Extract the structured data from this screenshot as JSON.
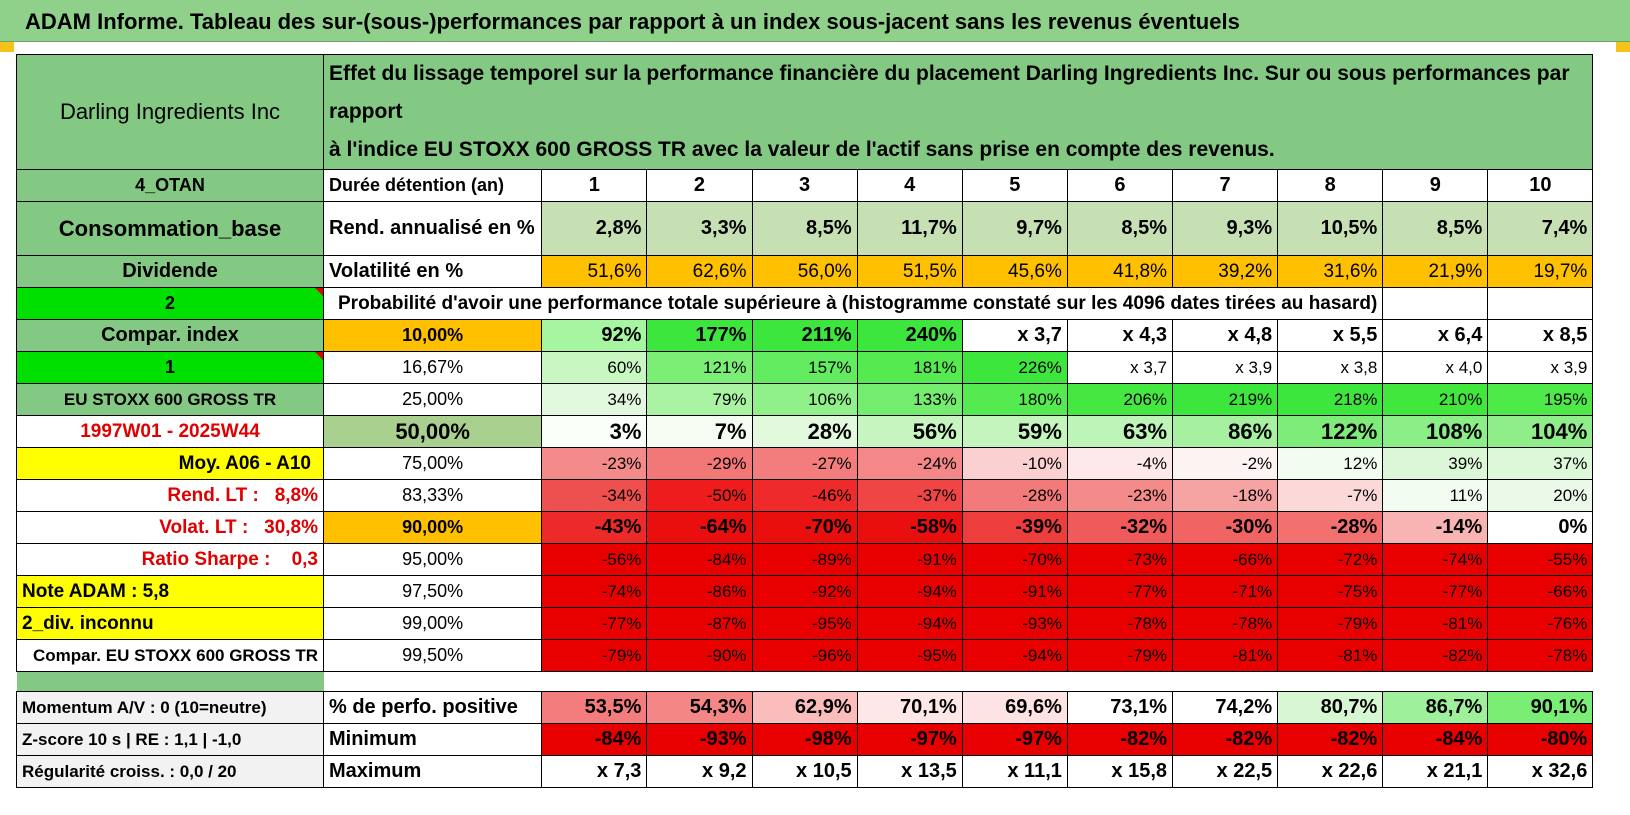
{
  "title": "ADAM Informe. Tableau des sur-(sous-)performances par rapport à un index sous-jacent sans les revenus éventuels",
  "header": {
    "asset": "Darling Ingredients Inc",
    "description_line1": "Effet du lissage temporel sur la performance financière du placement Darling Ingredients Inc. Sur ou sous performances par rapport",
    "description_line2": "à l'indice EU STOXX 600 GROSS TR avec la valeur de l'actif sans prise en compte des revenus."
  },
  "left_labels": {
    "otan": "4_OTAN",
    "consommation": "Consommation_base",
    "dividende": "Dividende",
    "num2": "2",
    "compar_index": "Compar. index",
    "num1": "1",
    "index_name": "EU STOXX 600 GROSS TR",
    "period": "1997W01 - 2025W44",
    "moy": "Moy. A06 - A10",
    "rend_lt_label": "Rend. LT :",
    "rend_lt_value": "8,8%",
    "volat_lt_label": "Volat. LT :",
    "volat_lt_value": "30,8%",
    "sharpe_label": "Ratio Sharpe :",
    "sharpe_value": "0,3",
    "note": "Note ADAM : 5,8",
    "div": "2_div. inconnu",
    "compar_full": "Compar. EU STOXX 600 GROSS TR",
    "momentum": "Momentum A/V : 0 (10=neutre)",
    "zscore": "Z-score 10 s | RE : 1,1 | -1,0",
    "regularite": "Régularité croiss. : 0,0 / 20"
  },
  "row_labels": {
    "duree": "Durée détention (an)",
    "rend": "Rend. annualisé en %",
    "volat": "Volatilité en %",
    "proba": "Probabilité d'avoir une performance totale supérieure à (histogramme constaté sur les 4096 dates tirées au hasard)",
    "positive": "% de perfo. positive",
    "minimum": "Minimum",
    "maximum": "Maximum"
  },
  "years": [
    "1",
    "2",
    "3",
    "4",
    "5",
    "6",
    "7",
    "8",
    "9",
    "10"
  ],
  "rend_values": [
    "2,8%",
    "3,3%",
    "8,5%",
    "11,7%",
    "9,7%",
    "8,5%",
    "9,3%",
    "10,5%",
    "8,5%",
    "7,4%"
  ],
  "volat_values": [
    "51,6%",
    "62,6%",
    "56,0%",
    "51,5%",
    "45,6%",
    "41,8%",
    "39,2%",
    "31,6%",
    "21,9%",
    "19,7%"
  ],
  "percentile_rows": [
    {
      "pct": "10,00%",
      "values": [
        "92%",
        "177%",
        "211%",
        "240%",
        "x 3,7",
        "x 4,3",
        "x 4,8",
        "x 5,5",
        "x 6,4",
        "x 8,5"
      ],
      "colors": [
        "#a6f5a0",
        "#3ce63c",
        "#3ce63c",
        "#3ce63c",
        "#ffffff",
        "#ffffff",
        "#ffffff",
        "#ffffff",
        "#ffffff",
        "#ffffff"
      ]
    },
    {
      "pct": "16,67%",
      "values": [
        "60%",
        "121%",
        "157%",
        "181%",
        "226%",
        "x 3,7",
        "x 3,9",
        "x 3,8",
        "x 4,0",
        "x 3,9"
      ],
      "colors": [
        "#c8f7c2",
        "#7bee76",
        "#63ec5f",
        "#55ea50",
        "#3ce63c",
        "#ffffff",
        "#ffffff",
        "#ffffff",
        "#ffffff",
        "#ffffff"
      ]
    },
    {
      "pct": "25,00%",
      "values": [
        "34%",
        "79%",
        "106%",
        "133%",
        "180%",
        "206%",
        "219%",
        "218%",
        "210%",
        "195%"
      ],
      "colors": [
        "#e3f9df",
        "#a9f3a3",
        "#90f08a",
        "#74ed6e",
        "#55ea50",
        "#45e840",
        "#3ce63c",
        "#3ce63c",
        "#42e73e",
        "#4de948"
      ]
    },
    {
      "pct": "50,00%",
      "values": [
        "3%",
        "7%",
        "28%",
        "56%",
        "59%",
        "63%",
        "86%",
        "122%",
        "108%",
        "104%"
      ],
      "colors": [
        "#fbfffa",
        "#f5fdf3",
        "#e2f9de",
        "#c6f5c0",
        "#c3f5bd",
        "#bff4b9",
        "#a6f1a0",
        "#7eec78",
        "#8cee86",
        "#90ee8a"
      ]
    },
    {
      "pct": "75,00%",
      "values": [
        "-23%",
        "-29%",
        "-27%",
        "-24%",
        "-10%",
        "-4%",
        "-2%",
        "12%",
        "39%",
        "37%"
      ],
      "colors": [
        "#f48b8b",
        "#f27777",
        "#f37d7d",
        "#f48787",
        "#fad0d0",
        "#fde9e9",
        "#fef3f3",
        "#f3fcf1",
        "#dbf7d7",
        "#ddf8d9"
      ]
    },
    {
      "pct": "83,33%",
      "values": [
        "-34%",
        "-50%",
        "-46%",
        "-37%",
        "-28%",
        "-23%",
        "-18%",
        "-7%",
        "11%",
        "20%"
      ],
      "colors": [
        "#ee4f4f",
        "#ee1c1c",
        "#ee2a2a",
        "#ef4545",
        "#f27a7a",
        "#f48b8b",
        "#f6a3a3",
        "#fbd9d9",
        "#f3fcf1",
        "#ebfae8"
      ]
    },
    {
      "pct": "90,00%",
      "values": [
        "-43%",
        "-64%",
        "-70%",
        "-58%",
        "-39%",
        "-32%",
        "-30%",
        "-28%",
        "-14%",
        "0%"
      ],
      "colors": [
        "#ec2a2a",
        "#ea0f0f",
        "#ea0f0f",
        "#ea0f0f",
        "#ee3d3d",
        "#f05a5a",
        "#f16464",
        "#f27070",
        "#f8b3b3",
        "#ffffff"
      ]
    },
    {
      "pct": "95,00%",
      "values": [
        "-56%",
        "-84%",
        "-89%",
        "-91%",
        "-70%",
        "-73%",
        "-66%",
        "-72%",
        "-74%",
        "-55%"
      ],
      "colors": [
        "#e80000",
        "#e80000",
        "#e80000",
        "#e80000",
        "#e80000",
        "#e80000",
        "#e80000",
        "#e80000",
        "#e80000",
        "#e80000"
      ]
    },
    {
      "pct": "97,50%",
      "values": [
        "-74%",
        "-86%",
        "-92%",
        "-94%",
        "-91%",
        "-77%",
        "-71%",
        "-75%",
        "-77%",
        "-66%"
      ],
      "colors": [
        "#e80000",
        "#e80000",
        "#e80000",
        "#e80000",
        "#e80000",
        "#e80000",
        "#e80000",
        "#e80000",
        "#e80000",
        "#e80000"
      ]
    },
    {
      "pct": "99,00%",
      "values": [
        "-77%",
        "-87%",
        "-95%",
        "-94%",
        "-93%",
        "-78%",
        "-78%",
        "-79%",
        "-81%",
        "-76%"
      ],
      "colors": [
        "#e80000",
        "#e80000",
        "#e80000",
        "#e80000",
        "#e80000",
        "#e80000",
        "#e80000",
        "#e80000",
        "#e80000",
        "#e80000"
      ]
    },
    {
      "pct": "99,50%",
      "values": [
        "-79%",
        "-90%",
        "-96%",
        "-95%",
        "-94%",
        "-79%",
        "-81%",
        "-81%",
        "-82%",
        "-78%"
      ],
      "colors": [
        "#e80000",
        "#e80000",
        "#e80000",
        "#e80000",
        "#e80000",
        "#e80000",
        "#e80000",
        "#e80000",
        "#e80000",
        "#e80000"
      ]
    }
  ],
  "positive_values": [
    "53,5%",
    "54,3%",
    "62,9%",
    "70,1%",
    "69,6%",
    "73,1%",
    "74,2%",
    "80,7%",
    "86,7%",
    "90,1%"
  ],
  "positive_colors": [
    "#f37c7c",
    "#f48686",
    "#fbbcbc",
    "#fee7e7",
    "#fde3e3",
    "#ffffff",
    "#ffffff",
    "#d7f6d2",
    "#9ef19a",
    "#7aed74"
  ],
  "minimum_values": [
    "-84%",
    "-93%",
    "-98%",
    "-97%",
    "-97%",
    "-82%",
    "-82%",
    "-82%",
    "-84%",
    "-80%"
  ],
  "maximum_values": [
    "x 7,3",
    "x 9,2",
    "x 10,5",
    "x 13,5",
    "x 11,1",
    "x 15,8",
    "x 22,5",
    "x 22,6",
    "x 21,1",
    "x 32,6"
  ],
  "colors": {
    "title_bg": "#8fd18a",
    "header_green": "#7fc97d",
    "orange": "#ffc000",
    "bright_green": "#00e000",
    "yellow": "#ffff00",
    "red_text": "#e00000",
    "neg_red": "#e80000"
  }
}
